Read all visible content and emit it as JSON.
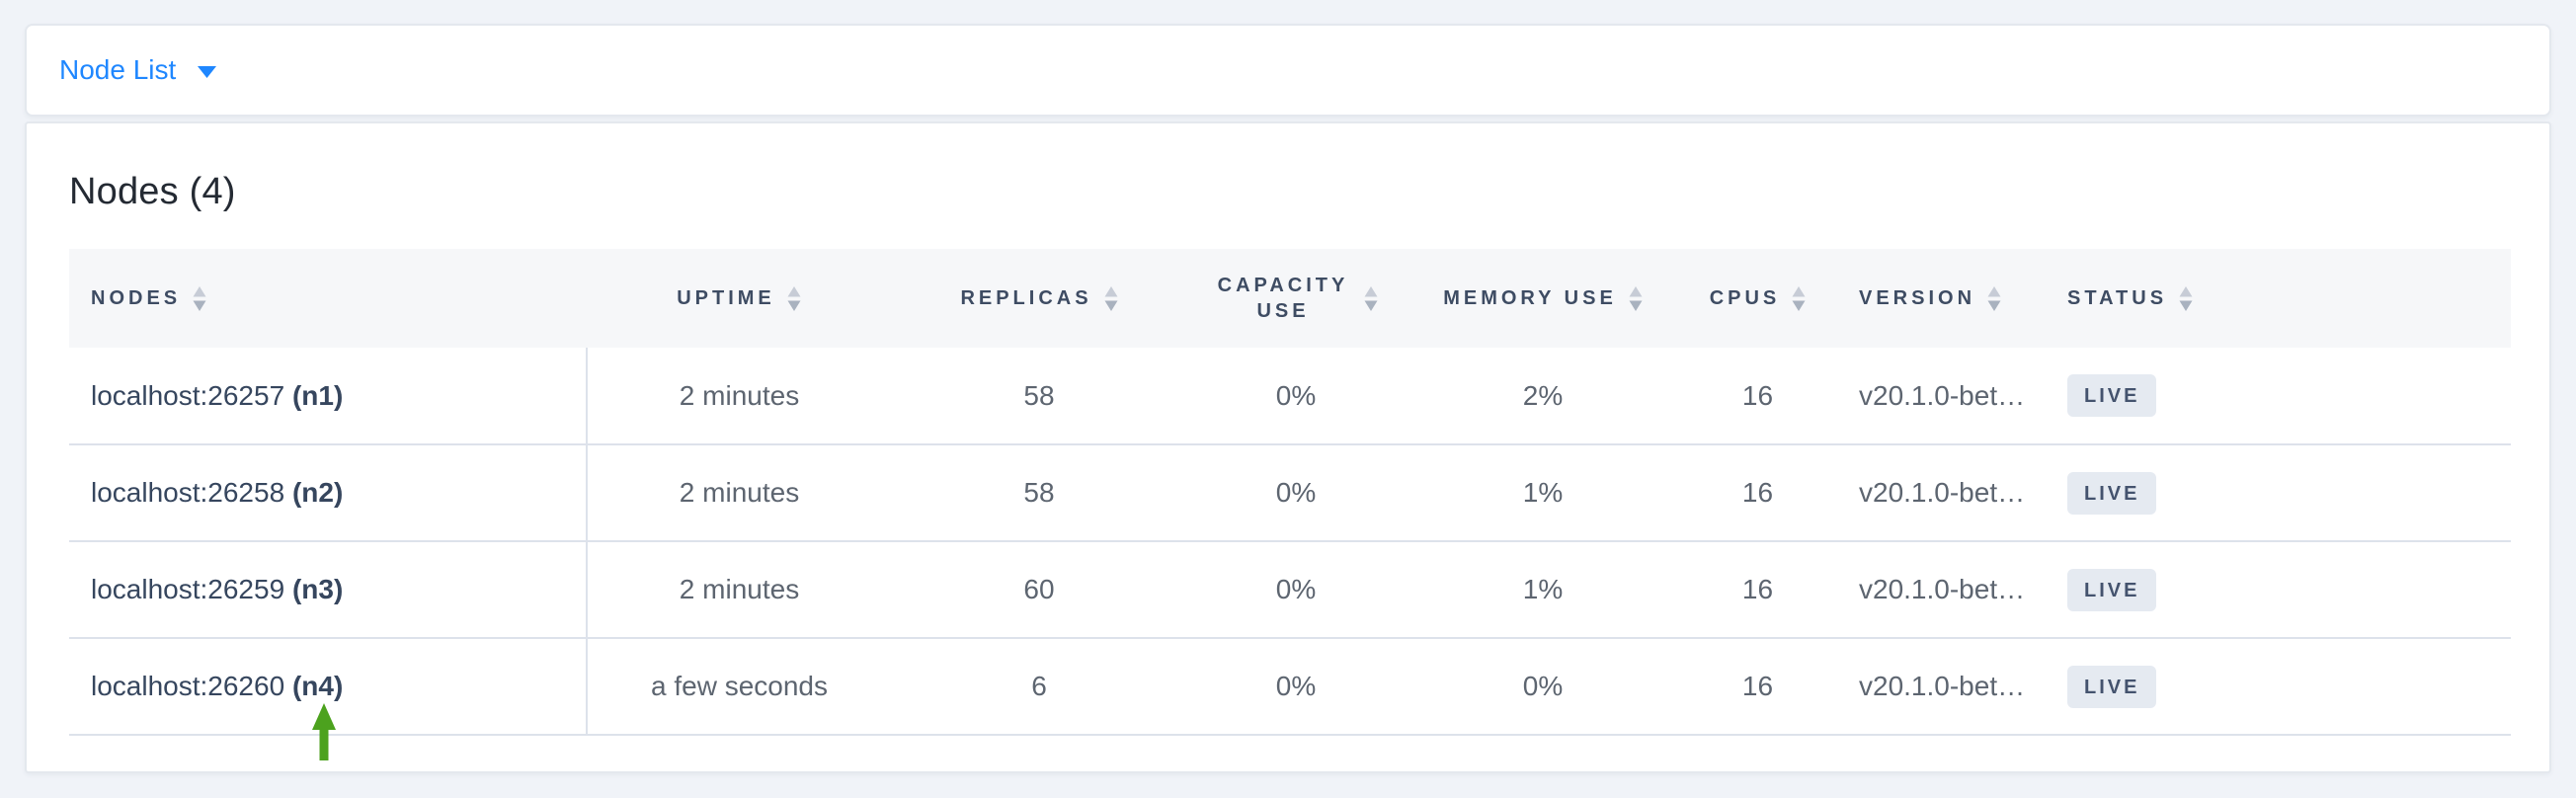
{
  "toolbar": {
    "view_dropdown": {
      "label": "Node List"
    }
  },
  "content": {
    "heading": "Nodes (4)"
  },
  "table": {
    "columns": [
      {
        "key": "nodes",
        "label": "Nodes"
      },
      {
        "key": "uptime",
        "label": "Uptime"
      },
      {
        "key": "replicas",
        "label": "Replicas"
      },
      {
        "key": "capacity_use",
        "label": "Capacity Use"
      },
      {
        "key": "memory_use",
        "label": "Memory Use"
      },
      {
        "key": "cpus",
        "label": "CPUs"
      },
      {
        "key": "version",
        "label": "Version"
      },
      {
        "key": "status",
        "label": "Status"
      }
    ],
    "rows": [
      {
        "node": "localhost:26257",
        "node_id": "(n1)",
        "uptime": "2 minutes",
        "replicas": "58",
        "capacity_use": "0%",
        "memory_use": "2%",
        "cpus": "16",
        "version": "v20.1.0-bet…",
        "status": "LIVE"
      },
      {
        "node": "localhost:26258",
        "node_id": "(n2)",
        "uptime": "2 minutes",
        "replicas": "58",
        "capacity_use": "0%",
        "memory_use": "1%",
        "cpus": "16",
        "version": "v20.1.0-bet…",
        "status": "LIVE"
      },
      {
        "node": "localhost:26259",
        "node_id": "(n3)",
        "uptime": "2 minutes",
        "replicas": "60",
        "capacity_use": "0%",
        "memory_use": "1%",
        "cpus": "16",
        "version": "v20.1.0-bet…",
        "status": "LIVE"
      },
      {
        "node": "localhost:26260",
        "node_id": "(n4)",
        "uptime": "a few seconds",
        "replicas": "6",
        "capacity_use": "0%",
        "memory_use": "0%",
        "cpus": "16",
        "version": "v20.1.0-bet…",
        "status": "LIVE"
      }
    ]
  },
  "icons": {
    "dropdown_caret": "filled down triangle",
    "sort": "stacked up/down triangles",
    "annotation_arrow": "green up arrow"
  },
  "colors": {
    "accent_blue": "#1f87ff",
    "header_text": "#3e4c63",
    "badge_bg": "#e5eaf1",
    "badge_text": "#44536e",
    "arrow_green": "#4ca21e",
    "row_border": "#dde2eb",
    "header_band_bg": "#f6f7f9",
    "page_bg": "#f0f3f8"
  }
}
